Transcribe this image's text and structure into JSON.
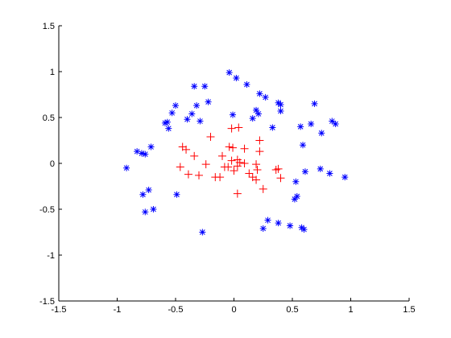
{
  "chart_data": {
    "type": "scatter",
    "xlim": [
      -1.5,
      1.5
    ],
    "ylim": [
      -1.5,
      1.5
    ],
    "xticks": [
      -1.5,
      -1,
      -0.5,
      0,
      0.5,
      1,
      1.5
    ],
    "yticks": [
      -1.5,
      -1,
      -0.5,
      0,
      0.5,
      1,
      1.5
    ],
    "grid": false,
    "series": [
      {
        "color": "#0000ff",
        "marker": "asterisk",
        "x": [
          -0.92,
          -0.83,
          -0.79,
          -0.76,
          -0.71,
          -0.78,
          -0.73,
          -0.76,
          -0.69,
          -0.49,
          -0.59,
          -0.57,
          -0.56,
          -0.53,
          -0.5,
          -0.4,
          -0.36,
          -0.32,
          -0.34,
          -0.25,
          -0.22,
          -0.29,
          -0.27,
          -0.04,
          0.02,
          -0.01,
          0.11,
          0.22,
          0.27,
          0.16,
          0.19,
          0.21,
          0.33,
          0.38,
          0.4,
          0.4,
          0.29,
          0.25,
          0.38,
          0.48,
          0.57,
          0.59,
          0.66,
          0.69,
          0.52,
          0.54,
          0.53,
          0.61,
          0.58,
          0.6,
          0.75,
          0.74,
          0.82,
          0.84,
          0.87,
          0.95
        ],
        "y": [
          -0.05,
          0.13,
          0.11,
          0.1,
          0.18,
          -0.34,
          -0.29,
          -0.53,
          -0.5,
          -0.34,
          0.44,
          0.45,
          0.38,
          0.55,
          0.63,
          0.48,
          0.54,
          0.63,
          0.84,
          0.84,
          0.67,
          0.46,
          -0.75,
          0.99,
          0.93,
          0.53,
          0.86,
          0.76,
          0.72,
          0.49,
          0.58,
          0.54,
          0.39,
          0.66,
          0.64,
          0.57,
          -0.62,
          -0.71,
          -0.65,
          -0.68,
          0.4,
          0.2,
          0.43,
          0.65,
          -0.39,
          -0.36,
          -0.2,
          -0.09,
          -0.7,
          -0.72,
          0.33,
          -0.06,
          -0.11,
          0.46,
          0.43,
          -0.15
        ]
      },
      {
        "color": "#ff0000",
        "marker": "plus",
        "x": [
          -0.2,
          -0.44,
          -0.41,
          -0.46,
          -0.39,
          -0.3,
          -0.34,
          -0.24,
          -0.16,
          -0.12,
          -0.1,
          -0.08,
          -0.04,
          -0.01,
          -0.02,
          -0.05,
          0.0,
          0.03,
          0.05,
          -0.02,
          0.04,
          0.09,
          0.09,
          0.03,
          0.13,
          0.16,
          0.19,
          0.2,
          0.19,
          0.22,
          0.22,
          0.25,
          0.36,
          0.4,
          0.38,
          0.03
        ],
        "y": [
          0.29,
          0.18,
          0.15,
          -0.04,
          -0.12,
          -0.13,
          0.08,
          -0.01,
          -0.15,
          -0.15,
          0.08,
          -0.04,
          0.18,
          0.17,
          0.03,
          -0.04,
          -0.08,
          -0.03,
          0.01,
          0.38,
          0.39,
          0.16,
          0.0,
          -0.33,
          -0.11,
          -0.15,
          -0.01,
          -0.07,
          -0.18,
          0.25,
          0.13,
          -0.28,
          -0.07,
          -0.16,
          -0.06,
          0.04
        ]
      }
    ]
  }
}
